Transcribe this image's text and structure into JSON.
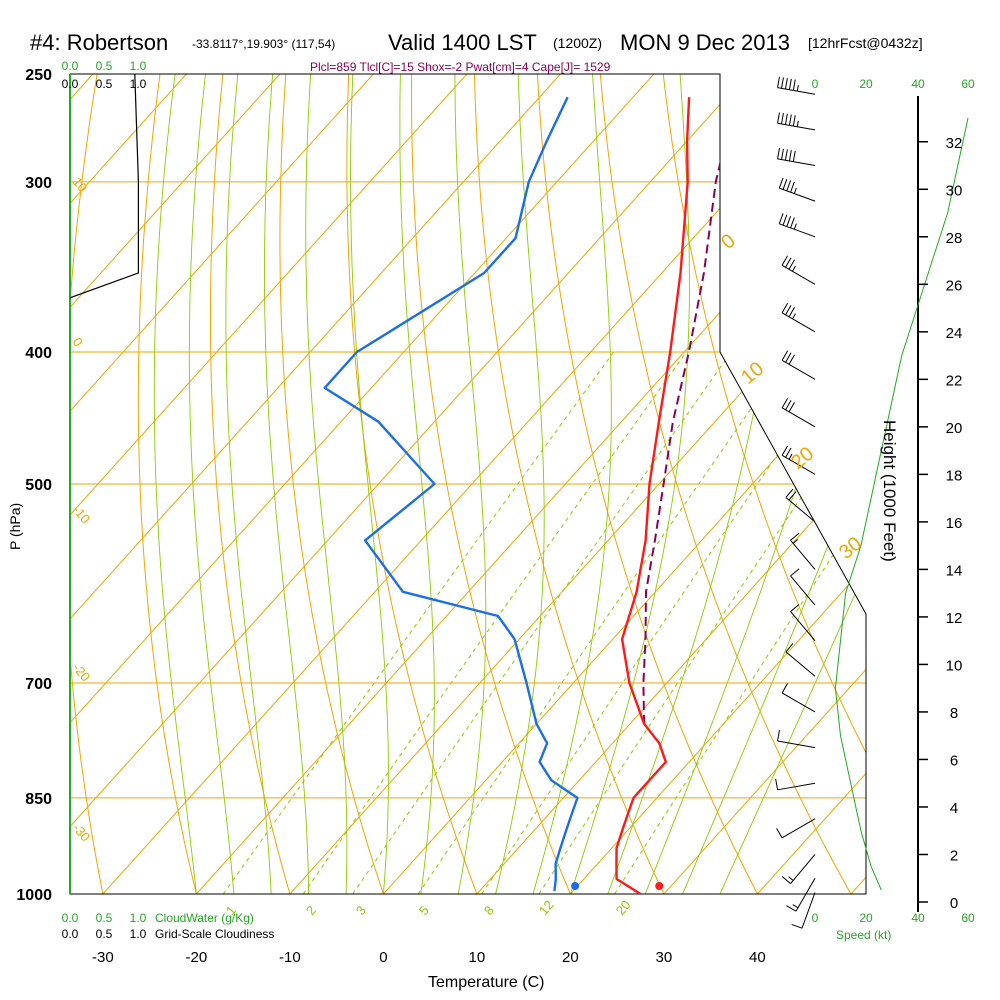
{
  "header": {
    "station": "#4: Robertson",
    "coords": "-33.8117°,19.903° (117,54)",
    "valid": "Valid 1400 LST",
    "utc": "(1200Z)",
    "date": "MON 9 Dec 2013",
    "forecast": "[12hrFcst@0432z]"
  },
  "indices_text": "Plcl=859 Tlcl[C]=15 Shox=-2 Pwat[cm]=4 Cape[J]= 1529",
  "colors": {
    "isotherm": "#f2a600",
    "dry_adiabat": "#f2a600",
    "moist_adiabat": "#8ccc00",
    "mixing_ratio": "#8ccc00",
    "temperature": "#ff1a1a",
    "dewpoint": "#1a6fe8",
    "parcel": "#8b0057",
    "cloud_scale": "#22aa22",
    "height_profile": "#22aa22",
    "text_main": "#000000",
    "indices_text": "#8b0057"
  },
  "chart_data": {
    "type": "skew-t",
    "xlabel": "Temperature (C)",
    "ylabel": "P (hPa)",
    "right_axis_label": "Height (1000 Feet)",
    "x_ticks": [
      -30,
      -20,
      -10,
      0,
      10,
      20,
      30,
      40
    ],
    "pressure_ticks": [
      250,
      300,
      400,
      500,
      700,
      850,
      1000
    ],
    "height_ticks": [
      0,
      2,
      4,
      6,
      8,
      10,
      12,
      14,
      16,
      18,
      20,
      22,
      24,
      26,
      28,
      30,
      32
    ],
    "dry_adiabat_labels": [
      "0",
      "10",
      "20",
      "30"
    ],
    "isotherm_left_labels": [
      "10",
      "0",
      "-10",
      "-20",
      "-30"
    ],
    "mixing_ratio_labels": [
      "1",
      "2",
      "3",
      "5",
      "8",
      "12",
      "20"
    ],
    "temperature_profile": [
      {
        "p": 1000,
        "t": 27.5
      },
      {
        "p": 975,
        "t": 23.5
      },
      {
        "p": 950,
        "t": 22.0
      },
      {
        "p": 925,
        "t": 20.5
      },
      {
        "p": 900,
        "t": 19.5
      },
      {
        "p": 875,
        "t": 18.5
      },
      {
        "p": 850,
        "t": 17.5
      },
      {
        "p": 825,
        "t": 17.5
      },
      {
        "p": 800,
        "t": 17.5
      },
      {
        "p": 775,
        "t": 15.0
      },
      {
        "p": 750,
        "t": 11.5
      },
      {
        "p": 700,
        "t": 6.0
      },
      {
        "p": 650,
        "t": 1.0
      },
      {
        "p": 600,
        "t": -2.0
      },
      {
        "p": 550,
        "t": -6.0
      },
      {
        "p": 500,
        "t": -11.0
      },
      {
        "p": 450,
        "t": -16.0
      },
      {
        "p": 400,
        "t": -21.5
      },
      {
        "p": 350,
        "t": -28.0
      },
      {
        "p": 300,
        "t": -36.0
      },
      {
        "p": 280,
        "t": -40.0
      },
      {
        "p": 260,
        "t": -44.0
      }
    ],
    "dewpoint_profile": [
      {
        "p": 995,
        "t": 18.0
      },
      {
        "p": 975,
        "t": 17.0
      },
      {
        "p": 950,
        "t": 15.5
      },
      {
        "p": 925,
        "t": 14.5
      },
      {
        "p": 900,
        "t": 13.5
      },
      {
        "p": 875,
        "t": 12.5
      },
      {
        "p": 850,
        "t": 11.5
      },
      {
        "p": 825,
        "t": 7.0
      },
      {
        "p": 800,
        "t": 4.0
      },
      {
        "p": 775,
        "t": 3.0
      },
      {
        "p": 750,
        "t": 0.0
      },
      {
        "p": 700,
        "t": -5.0
      },
      {
        "p": 650,
        "t": -10.5
      },
      {
        "p": 625,
        "t": -14.5
      },
      {
        "p": 600,
        "t": -27.0
      },
      {
        "p": 550,
        "t": -36.0
      },
      {
        "p": 500,
        "t": -34.0
      },
      {
        "p": 450,
        "t": -46.0
      },
      {
        "p": 425,
        "t": -55.0
      },
      {
        "p": 400,
        "t": -55.0
      },
      {
        "p": 350,
        "t": -49.0
      },
      {
        "p": 330,
        "t": -49.0
      },
      {
        "p": 300,
        "t": -53.0
      },
      {
        "p": 280,
        "t": -55.0
      },
      {
        "p": 260,
        "t": -57.0
      }
    ],
    "parcel_profile": [
      {
        "p": 750,
        "t": 11.5
      },
      {
        "p": 700,
        "t": 7.5
      },
      {
        "p": 650,
        "t": 3.5
      },
      {
        "p": 600,
        "t": -1.0
      },
      {
        "p": 550,
        "t": -5.0
      },
      {
        "p": 500,
        "t": -9.5
      },
      {
        "p": 450,
        "t": -14.5
      },
      {
        "p": 400,
        "t": -19.5
      },
      {
        "p": 350,
        "t": -25.5
      },
      {
        "p": 300,
        "t": -33.0
      },
      {
        "p": 260,
        "t": -39.0
      }
    ],
    "surface": {
      "temperature": 29.5,
      "dewpoint": 20.5
    },
    "cloud_scale_labels": [
      "0.0",
      "0.5",
      "1.0"
    ],
    "cloudwater_label": "CloudWater (g/Kg)",
    "cloudiness_label": "Grid-Scale Cloudiness",
    "speed_label": "Speed (kt)",
    "speed_ticks": [
      "0",
      "20",
      "40",
      "60"
    ],
    "cloudiness_profile": [
      {
        "p": 250,
        "frac": 0.9
      },
      {
        "p": 300,
        "frac": 0.95
      },
      {
        "p": 350,
        "frac": 0.95
      },
      {
        "p": 365,
        "frac": 0.0
      }
    ],
    "wind_speed_profile": [
      {
        "h": 0.5,
        "kt": 26
      },
      {
        "h": 1.5,
        "kt": 22
      },
      {
        "h": 3,
        "kt": 18
      },
      {
        "h": 5,
        "kt": 14
      },
      {
        "h": 7,
        "kt": 10
      },
      {
        "h": 9,
        "kt": 8
      },
      {
        "h": 11,
        "kt": 10
      },
      {
        "h": 13,
        "kt": 12
      },
      {
        "h": 15,
        "kt": 18
      },
      {
        "h": 17,
        "kt": 22
      },
      {
        "h": 19,
        "kt": 26
      },
      {
        "h": 21,
        "kt": 30
      },
      {
        "h": 23,
        "kt": 34
      },
      {
        "h": 25,
        "kt": 40
      },
      {
        "h": 27,
        "kt": 46
      },
      {
        "h": 29,
        "kt": 52
      },
      {
        "h": 31,
        "kt": 56
      },
      {
        "h": 33,
        "kt": 60
      }
    ],
    "wind_barbs": [
      {
        "h": 0.4,
        "kt": 10,
        "dir": 200
      },
      {
        "h": 1.0,
        "kt": 15,
        "dir": 210
      },
      {
        "h": 2.0,
        "kt": 15,
        "dir": 220
      },
      {
        "h": 3.5,
        "kt": 10,
        "dir": 240
      },
      {
        "h": 5.0,
        "kt": 10,
        "dir": 260
      },
      {
        "h": 6.5,
        "kt": 10,
        "dir": 280
      },
      {
        "h": 8.0,
        "kt": 10,
        "dir": 300
      },
      {
        "h": 9.5,
        "kt": 10,
        "dir": 310
      },
      {
        "h": 11.0,
        "kt": 10,
        "dir": 320
      },
      {
        "h": 12.5,
        "kt": 10,
        "dir": 320
      },
      {
        "h": 14.0,
        "kt": 15,
        "dir": 320
      },
      {
        "h": 16.0,
        "kt": 20,
        "dir": 310
      },
      {
        "h": 18.0,
        "kt": 25,
        "dir": 300
      },
      {
        "h": 20.0,
        "kt": 30,
        "dir": 300
      },
      {
        "h": 22.0,
        "kt": 30,
        "dir": 300
      },
      {
        "h": 24.0,
        "kt": 35,
        "dir": 300
      },
      {
        "h": 26.0,
        "kt": 35,
        "dir": 300
      },
      {
        "h": 28.0,
        "kt": 45,
        "dir": 290
      },
      {
        "h": 29.5,
        "kt": 45,
        "dir": 290
      },
      {
        "h": 31.0,
        "kt": 50,
        "dir": 280
      },
      {
        "h": 32.5,
        "kt": 55,
        "dir": 280
      },
      {
        "h": 34.0,
        "kt": 55,
        "dir": 280
      }
    ]
  }
}
